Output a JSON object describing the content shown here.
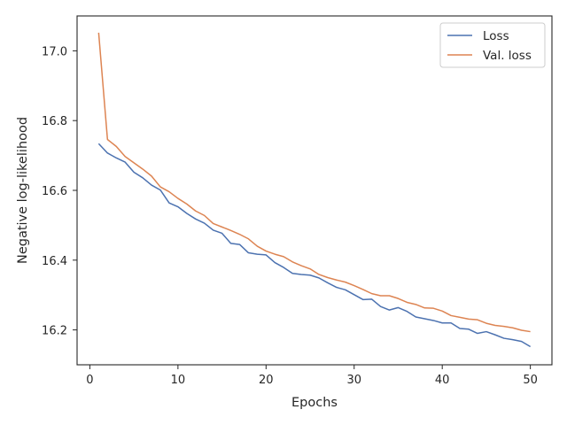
{
  "chart_data": {
    "type": "line",
    "title": "",
    "xlabel": "Epochs",
    "ylabel": "Negative log-likelihood",
    "xlim": [
      -1.45,
      52.45
    ],
    "ylim": [
      16.1,
      17.1
    ],
    "xticks": [
      0,
      10,
      20,
      30,
      40,
      50
    ],
    "xtick_labels": [
      "0",
      "10",
      "20",
      "30",
      "40",
      "50"
    ],
    "yticks": [
      16.2,
      16.4,
      16.6,
      16.8,
      17.0
    ],
    "ytick_labels": [
      "16.2",
      "16.4",
      "16.6",
      "16.8",
      "17.0"
    ],
    "grid": false,
    "legend_position": "top-right",
    "x": [
      1,
      2,
      3,
      4,
      5,
      6,
      7,
      8,
      9,
      10,
      11,
      12,
      13,
      14,
      15,
      16,
      17,
      18,
      19,
      20,
      21,
      22,
      23,
      24,
      25,
      26,
      27,
      28,
      29,
      30,
      31,
      32,
      33,
      34,
      35,
      36,
      37,
      38,
      39,
      40,
      41,
      42,
      43,
      44,
      45,
      46,
      47,
      48,
      49,
      50
    ],
    "series": [
      {
        "name": "Loss",
        "color": "#4c72b0",
        "values": [
          16.734,
          16.707,
          16.693,
          16.681,
          16.652,
          16.636,
          16.615,
          16.601,
          16.564,
          16.553,
          16.534,
          16.518,
          16.506,
          16.486,
          16.477,
          16.448,
          16.445,
          16.421,
          16.417,
          16.415,
          16.393,
          16.379,
          16.362,
          16.359,
          16.357,
          16.349,
          16.335,
          16.322,
          16.315,
          16.301,
          16.287,
          16.288,
          16.267,
          16.257,
          16.264,
          16.253,
          16.237,
          16.232,
          16.227,
          16.22,
          16.22,
          16.204,
          16.202,
          16.19,
          16.195,
          16.186,
          16.176,
          16.172,
          16.167,
          16.152
        ]
      },
      {
        "name": "Val. loss",
        "color": "#dd8452",
        "values": [
          17.052,
          16.746,
          16.726,
          16.697,
          16.679,
          16.661,
          16.641,
          16.61,
          16.596,
          16.577,
          16.561,
          16.541,
          16.528,
          16.505,
          16.495,
          16.485,
          16.474,
          16.461,
          16.44,
          16.426,
          16.417,
          16.41,
          16.395,
          16.384,
          16.375,
          16.359,
          16.35,
          16.343,
          16.337,
          16.327,
          16.316,
          16.304,
          16.298,
          16.298,
          16.29,
          16.279,
          16.273,
          16.263,
          16.262,
          16.254,
          16.241,
          16.236,
          16.231,
          16.229,
          16.219,
          16.213,
          16.21,
          16.206,
          16.199,
          16.195
        ]
      }
    ]
  }
}
